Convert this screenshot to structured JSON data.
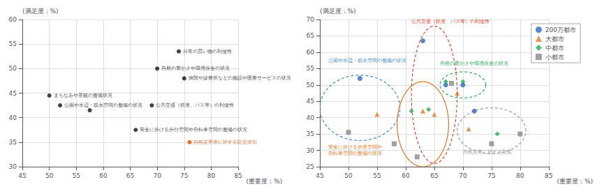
{
  "chart_data": [
    {
      "type": "scatter",
      "y_label": "(満足度：%)",
      "x_label": "(重要度：%)",
      "xlim": [
        45,
        85
      ],
      "ylim": [
        30,
        60
      ],
      "xticks": [
        45,
        50,
        55,
        60,
        65,
        70,
        75,
        80,
        85
      ],
      "yticks": [
        30,
        35,
        40,
        45,
        50,
        55,
        60
      ],
      "grid": true,
      "x": [
        74,
        70,
        75,
        50,
        69,
        52,
        57.5,
        66,
        76
      ],
      "values": [
        53.5,
        50,
        48,
        44.5,
        42.5,
        42.5,
        41.5,
        37.5,
        35
      ],
      "labels": [
        "日常の買い物の利便性",
        "自然の豊かさや環境保全の状況",
        "病院や診療所などの施設や医療サービスの状況",
        "まちなみや景観の整備状況",
        "公共交通（鉄道、バス等）の利便性",
        "公園や水辺・親水空間の整備の状況",
        null,
        "安全に歩ける歩行空間や自転車空間の整備の状況",
        "自然災害等に対する防災体制"
      ],
      "colors": [
        "#111111",
        "#111111",
        "#111111",
        "#111111",
        "#111111",
        "#111111",
        "#111111",
        "#111111",
        "#e05500"
      ]
    },
    {
      "type": "scatter",
      "y_label": "(満足度：%)",
      "x_label": "(重要度：%)",
      "xlim": [
        45,
        85
      ],
      "ylim": [
        25,
        70
      ],
      "xticks": [
        45,
        50,
        55,
        60,
        65,
        70,
        75,
        80,
        85
      ],
      "yticks": [
        25,
        30,
        35,
        40,
        45,
        50,
        55,
        60,
        65,
        70
      ],
      "grid": true,
      "legend": "upper right",
      "series": [
        {
          "name": "200万都市",
          "marker": "circle",
          "color": "#3366bb",
          "x": [
            52,
            63,
            67,
            70,
            72
          ],
          "values": [
            52,
            63.5,
            50,
            50,
            42
          ]
        },
        {
          "name": "大都市",
          "marker": "triangle",
          "color": "#e07820",
          "x": [
            55,
            63,
            65,
            69,
            71
          ],
          "values": [
            41,
            42,
            41,
            47.5,
            36.5
          ]
        },
        {
          "name": "中都市",
          "marker": "diamond",
          "color": "#22aa55",
          "x": [
            61,
            64,
            67,
            70,
            76
          ],
          "values": [
            42,
            42.5,
            51,
            51,
            35
          ]
        },
        {
          "name": "小都市",
          "marker": "square",
          "color": "#888888",
          "x": [
            50,
            58,
            62,
            68,
            75,
            80
          ],
          "values": [
            35.5,
            32,
            28,
            50.5,
            32,
            35
          ]
        }
      ],
      "ellipses": [
        {
          "label": "公園や水辺・親水空間の整備の状況",
          "cx": 52,
          "cy": 43,
          "rx": 7,
          "ry": 10,
          "color": "#4488cc",
          "line_style": "dashed",
          "label_x": 46.5,
          "label_y": 56.5
        },
        {
          "label": "安全に歩ける歩道空間や\n自転車空間の整備の状況",
          "cx": 63,
          "cy": 38,
          "rx": 4.5,
          "ry": 13,
          "color": "#e07820",
          "line_style": "solid",
          "label_x": 46.5,
          "label_y": 28
        },
        {
          "label": "公共交通（鉄道、バス等）の利便性",
          "cx": 65,
          "cy": 47,
          "rx": 4,
          "ry": 21,
          "color": "#e04428",
          "line_style": "dashed",
          "label_x": 61,
          "label_y": 68.5
        },
        {
          "label": "自然の豊かさや環境保全の状況",
          "cx": 70,
          "cy": 50,
          "rx": 4,
          "ry": 4,
          "color": "#22aa55",
          "line_style": "dashed",
          "label_x": 66,
          "label_y": 55.5
        },
        {
          "label": "自然災害に対する防災",
          "cx": 75,
          "cy": 36,
          "rx": 6,
          "ry": 7,
          "color": "#999999",
          "line_style": "dashed",
          "label_x": 70,
          "label_y": 28.5
        }
      ]
    }
  ]
}
